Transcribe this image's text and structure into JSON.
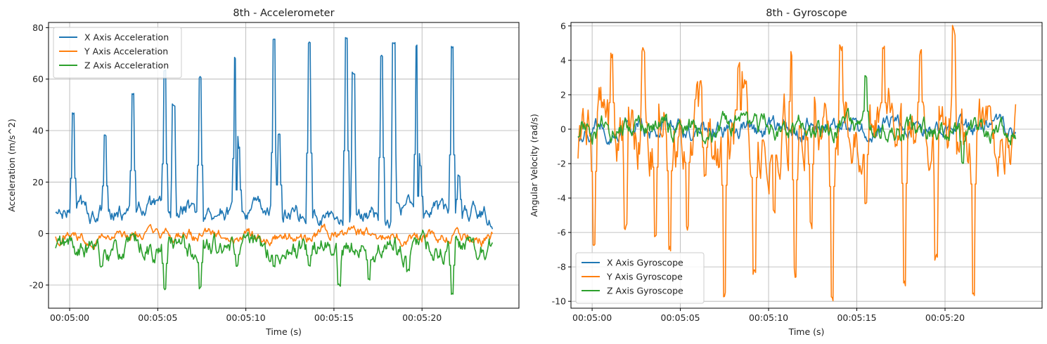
{
  "chart_data": [
    {
      "type": "line",
      "title": "8th - Accelerometer",
      "xlabel": "Time (s)",
      "ylabel": "Acceleration (m/s^2)",
      "xlim": [
        -1.2,
        25.5
      ],
      "ylim": [
        -29,
        82
      ],
      "xticks": [
        0,
        5,
        10,
        15,
        20
      ],
      "xtick_labels": [
        "00:05:00",
        "00:05:05",
        "00:05:10",
        "00:05:15",
        "00:05:20"
      ],
      "yticks": [
        -20,
        0,
        20,
        40,
        60,
        80
      ],
      "grid": true,
      "legend_position": "upper-left",
      "x_end": 24.0,
      "series": [
        {
          "name": "X Axis Acceleration",
          "color": "#1f77b4",
          "base": 8,
          "amp": 3.5,
          "spikes": [
            [
              0.2,
              46.5
            ],
            [
              2.0,
              38
            ],
            [
              3.6,
              55
            ],
            [
              5.4,
              62.5
            ],
            [
              5.9,
              50
            ],
            [
              7.4,
              61
            ],
            [
              9.4,
              68.5
            ],
            [
              9.6,
              33.5
            ],
            [
              11.6,
              75
            ],
            [
              11.9,
              39
            ],
            [
              13.6,
              74.5
            ],
            [
              15.7,
              77
            ],
            [
              16.1,
              62
            ],
            [
              17.7,
              69.5
            ],
            [
              18.4,
              74
            ],
            [
              19.7,
              73
            ],
            [
              19.9,
              26.5
            ],
            [
              21.7,
              72.5
            ],
            [
              22.1,
              23
            ]
          ]
        },
        {
          "name": "Y Axis Acceleration",
          "color": "#ff7f0e",
          "base": -1,
          "amp": 2.2,
          "spikes": []
        },
        {
          "name": "Z Axis Acceleration",
          "color": "#2ca02c",
          "base": -6,
          "amp": 4,
          "spikes": [
            [
              1.8,
              -13
            ],
            [
              5.4,
              -22
            ],
            [
              7.4,
              -21
            ],
            [
              9.5,
              -12
            ],
            [
              11.6,
              -13
            ],
            [
              13.6,
              -13
            ],
            [
              15.3,
              -20
            ],
            [
              17.0,
              -18
            ],
            [
              19.2,
              -14
            ],
            [
              21.7,
              -24
            ]
          ]
        }
      ]
    },
    {
      "type": "line",
      "title": "8th - Gyroscope",
      "xlabel": "Time (s)",
      "ylabel": "Angular Velocity (rad/s)",
      "xlim": [
        -1.2,
        25.5
      ],
      "ylim": [
        -10.4,
        6.2
      ],
      "xticks": [
        0,
        5,
        10,
        15,
        20
      ],
      "xtick_labels": [
        "00:05:00",
        "00:05:05",
        "00:05:10",
        "00:05:15",
        "00:05:20"
      ],
      "yticks": [
        -10,
        -8,
        -6,
        -4,
        -2,
        0,
        2,
        4,
        6
      ],
      "grid": true,
      "legend_position": "lower-left",
      "x_end": 24.0,
      "series": [
        {
          "name": "X Axis Gyroscope",
          "color": "#1f77b4",
          "base": 0,
          "amp": 0.5,
          "spikes": []
        },
        {
          "name": "Y Axis Gyroscope",
          "color": "#ff7f0e",
          "base": 0,
          "amp": 1.8,
          "spikes": [
            [
              0.1,
              -7
            ],
            [
              1.1,
              4.4
            ],
            [
              1.9,
              -6
            ],
            [
              2.9,
              4.8
            ],
            [
              3.6,
              -6.3
            ],
            [
              4.4,
              -6.9
            ],
            [
              5.4,
              -5.5
            ],
            [
              6.4,
              -3
            ],
            [
              7.5,
              -9.3
            ],
            [
              8.3,
              3.2
            ],
            [
              9.2,
              -8
            ],
            [
              10.3,
              -4.3
            ],
            [
              11.3,
              4.6
            ],
            [
              11.5,
              -8.4
            ],
            [
              12.4,
              -5.8
            ],
            [
              13.6,
              -9.5
            ],
            [
              14.1,
              4.7
            ],
            [
              15.5,
              -4.2
            ],
            [
              16.5,
              4.4
            ],
            [
              17.7,
              -9
            ],
            [
              18.6,
              4.5
            ],
            [
              19.5,
              -7.8
            ],
            [
              20.5,
              5.5
            ],
            [
              21.6,
              -9.1
            ],
            [
              22.5,
              1.5
            ]
          ]
        },
        {
          "name": "Z Axis Gyroscope",
          "color": "#2ca02c",
          "base": 0,
          "amp": 0.6,
          "spikes": [
            [
              15.5,
              3.0
            ],
            [
              21.0,
              -2.0
            ]
          ]
        }
      ]
    }
  ]
}
